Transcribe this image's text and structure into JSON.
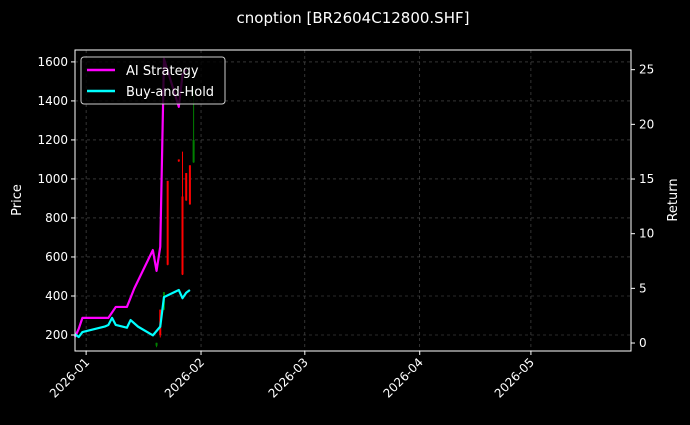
{
  "chart_data": {
    "type": "line",
    "title": "cnoption [BR2604C12800.SHF]",
    "ylabel": "Price",
    "ylabel_right": "Return",
    "xlim": [
      "2025-12-29",
      "2026-05-28"
    ],
    "ylim": [
      118,
      1661
    ],
    "ylim_right": [
      -0.73,
      26.8
    ],
    "x_ticks": [
      "2026-01-01",
      "2026-02-01",
      "2026-03-01",
      "2026-04-01",
      "2026-05-01"
    ],
    "x_tick_labels": [
      "2026-01",
      "2026-02",
      "2026-03",
      "2026-04",
      "2026-05"
    ],
    "y_ticks": [
      200,
      400,
      600,
      800,
      1000,
      1200,
      1400,
      1600
    ],
    "y_ticks_right": [
      0,
      5,
      10,
      15,
      20,
      25
    ],
    "grid": true,
    "legend_position": "top-left",
    "background": "#000000",
    "candles": {
      "up_color": "#008000",
      "down_color": "#ff0000",
      "items": [
        {
          "date": "2026-01-20",
          "open": 145,
          "high": 160,
          "low": 140,
          "close": 160
        },
        {
          "date": "2026-01-21",
          "open": 330,
          "high": 330,
          "low": 190,
          "close": 200
        },
        {
          "date": "2026-01-22",
          "open": 330,
          "high": 420,
          "low": 330,
          "close": 420
        },
        {
          "date": "2026-01-23",
          "open": 990,
          "high": 990,
          "low": 560,
          "close": 560
        },
        {
          "date": "2026-01-26",
          "open": 1100,
          "high": 1100,
          "low": 1090,
          "close": 1090
        },
        {
          "date": "2026-01-27",
          "open": 910,
          "high": 1140,
          "low": 510,
          "close": 510
        },
        {
          "date": "2026-01-28",
          "open": 1030,
          "high": 1030,
          "low": 890,
          "close": 890
        },
        {
          "date": "2026-01-29",
          "open": 1070,
          "high": 1070,
          "low": 870,
          "close": 870
        },
        {
          "date": "2026-01-30",
          "open": 1085,
          "high": 1460,
          "low": 1085,
          "close": 1200
        }
      ]
    },
    "series": [
      {
        "name": "AI Strategy",
        "axis": "right",
        "color": "#ff00ff",
        "points": [
          [
            "2025-12-29",
            0.55
          ],
          [
            "2025-12-30",
            1.3
          ],
          [
            "2025-12-31",
            2.3
          ],
          [
            "2026-01-07",
            2.3
          ],
          [
            "2026-01-09",
            3.3
          ],
          [
            "2026-01-12",
            3.3
          ],
          [
            "2026-01-14",
            5.0
          ],
          [
            "2026-01-19",
            8.5
          ],
          [
            "2026-01-20",
            6.6
          ],
          [
            "2026-01-21",
            8.8
          ],
          [
            "2026-01-22",
            26.0
          ],
          [
            "2026-01-26",
            21.6
          ],
          [
            "2026-01-27",
            24.5
          ],
          [
            "2026-01-28",
            25.0
          ]
        ]
      },
      {
        "name": "Buy-and-Hold",
        "axis": "right",
        "color": "#00ffff",
        "points": [
          [
            "2025-12-29",
            0.8
          ],
          [
            "2025-12-30",
            0.55
          ],
          [
            "2025-12-31",
            1.0
          ],
          [
            "2026-01-06",
            1.5
          ],
          [
            "2026-01-07",
            1.65
          ],
          [
            "2026-01-08",
            2.3
          ],
          [
            "2026-01-09",
            1.65
          ],
          [
            "2026-01-12",
            1.4
          ],
          [
            "2026-01-13",
            2.1
          ],
          [
            "2026-01-15",
            1.5
          ],
          [
            "2026-01-19",
            0.7
          ],
          [
            "2026-01-21",
            1.5
          ],
          [
            "2026-01-22",
            4.2
          ],
          [
            "2026-01-26",
            4.85
          ],
          [
            "2026-01-27",
            4.1
          ],
          [
            "2026-01-28",
            4.6
          ],
          [
            "2026-01-29",
            4.85
          ]
        ]
      }
    ]
  }
}
